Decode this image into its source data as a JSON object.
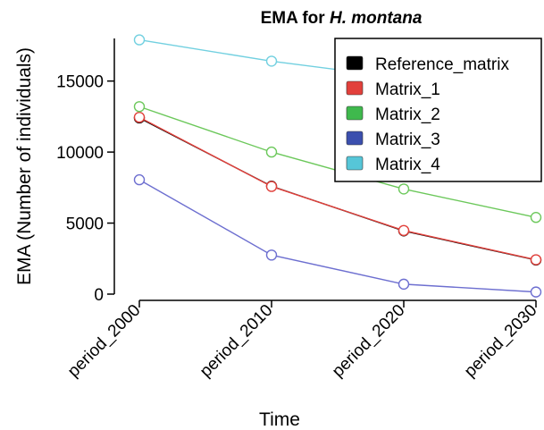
{
  "chart_data": {
    "type": "line",
    "title_prefix": "EMA for ",
    "title_italic": "H. montana",
    "xlabel": "Time",
    "ylabel": "EMA (Number of individuals)",
    "categories": [
      "period_2000",
      "period_2010",
      "period_2020",
      "period_2030"
    ],
    "ylim": [
      0,
      18000
    ],
    "yticks": [
      0,
      5000,
      10000,
      15000
    ],
    "ytick_labels": [
      "0",
      "5000",
      "10000",
      "15000"
    ],
    "legend_position": "top-right",
    "series": [
      {
        "name": "Reference_matrix",
        "color": "#000000",
        "values": [
          12400,
          7600,
          4450,
          2400
        ]
      },
      {
        "name": "Matrix_1",
        "color": "#e2403b",
        "values": [
          12450,
          7580,
          4480,
          2420
        ]
      },
      {
        "name": "Matrix_2",
        "color": "#6cc85b",
        "values": [
          13200,
          10000,
          7400,
          5400
        ]
      },
      {
        "name": "Matrix_3",
        "color": "#6d6fd0",
        "values": [
          8050,
          2750,
          700,
          150
        ]
      },
      {
        "name": "Matrix_4",
        "color": "#72d0e0",
        "values": [
          17900,
          16400,
          15200,
          14200
        ]
      }
    ],
    "legend_swatch_colors": [
      "#000000",
      "#e2403b",
      "#3fb94d",
      "#3b4fae",
      "#56c6d8"
    ]
  }
}
